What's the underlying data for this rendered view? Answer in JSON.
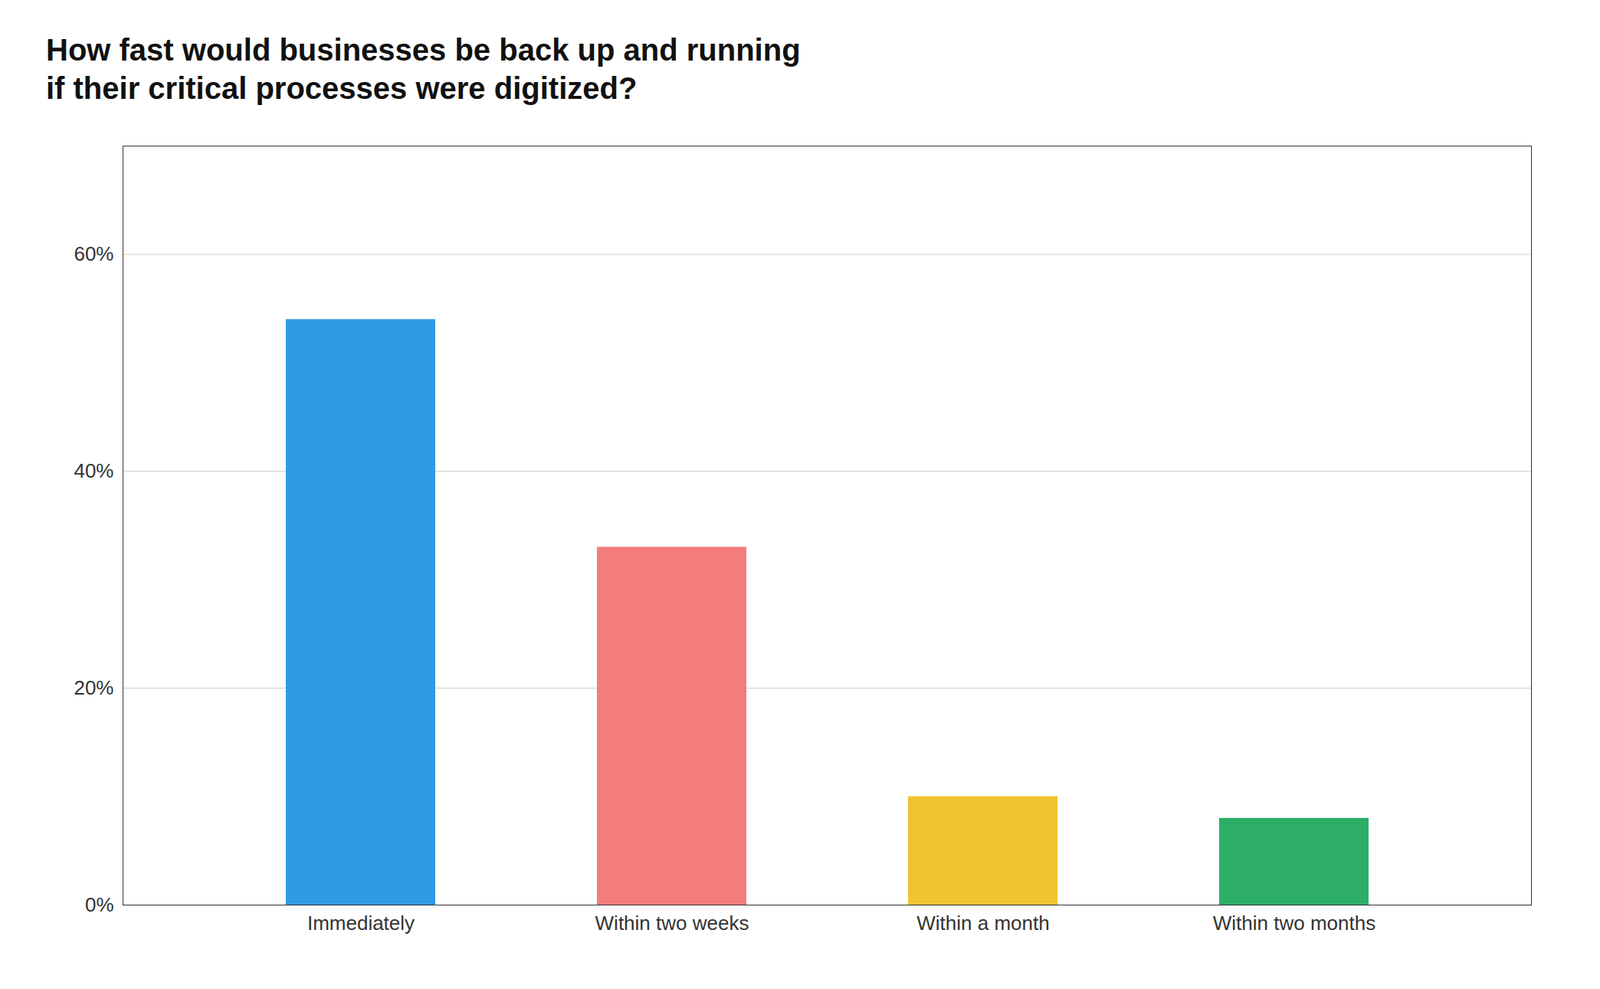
{
  "chart_data": {
    "type": "bar",
    "title": "How fast would businesses be back up and running\nif their critical processes were digitized?",
    "categories": [
      "Immediately",
      "Within two weeks",
      "Within a month",
      "Within two months"
    ],
    "values": [
      0.54,
      0.33,
      0.1,
      0.08
    ],
    "colors": [
      "#2E9BE5",
      "#F47C7C",
      "#F0C330",
      "#2CAE66"
    ],
    "ylim": [
      0,
      0.7
    ],
    "yticks": [
      {
        "value": 0.0,
        "label": "0%"
      },
      {
        "value": 0.2,
        "label": "20%"
      },
      {
        "value": 0.4,
        "label": "40%"
      },
      {
        "value": 0.6,
        "label": "60%"
      }
    ],
    "grid": true
  }
}
